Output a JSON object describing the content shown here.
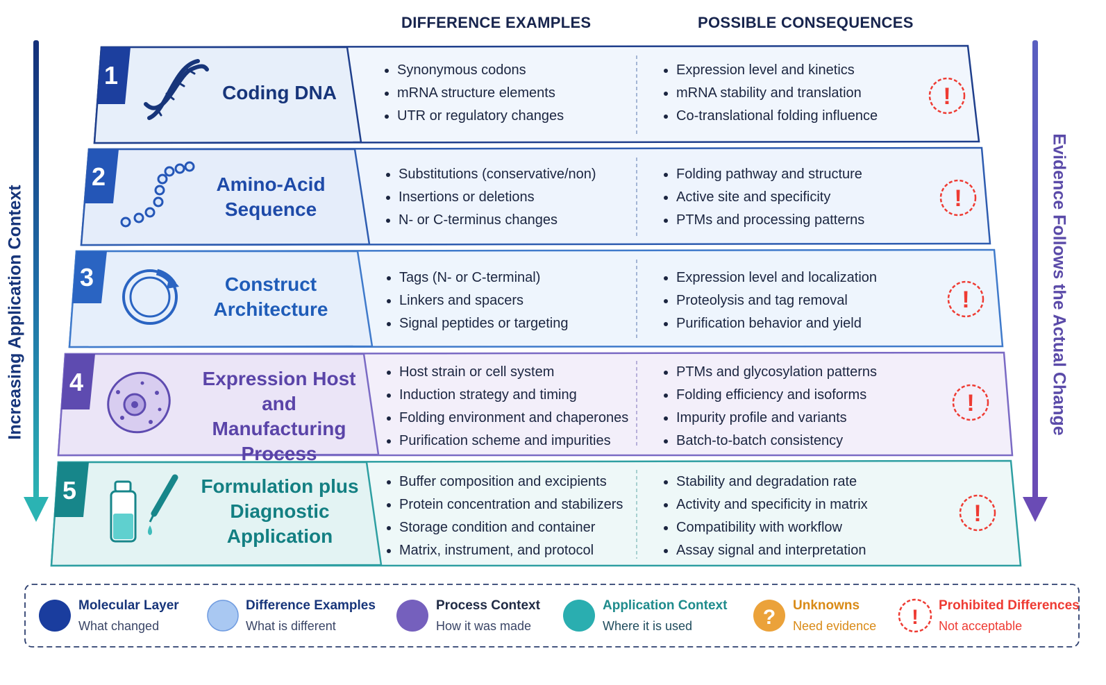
{
  "headers": {
    "difference": "DIFFERENCE EXAMPLES",
    "consequence": "POSSIBLE CONSEQUENCES"
  },
  "side_labels": {
    "left": "Increasing Application Context",
    "right": "Evidence Follows the Actual Change"
  },
  "layers": [
    {
      "number": "1",
      "title_lines": [
        "Coding DNA"
      ],
      "icon": "dna-helix-icon",
      "differences": [
        "Synonymous codons",
        "mRNA structure elements",
        "UTR or regulatory changes"
      ],
      "consequences": [
        "Expression level and kinetics",
        "mRNA stability and translation",
        "Co-translational folding influence"
      ]
    },
    {
      "number": "2",
      "title_lines": [
        "Amino-Acid",
        "Sequence"
      ],
      "icon": "amino-acid-chain-icon",
      "differences": [
        "Substitutions (conservative/non)",
        "Insertions or deletions",
        "N- or C-terminus changes"
      ],
      "consequences": [
        "Folding pathway and structure",
        "Active site and specificity",
        "PTMs and processing patterns"
      ]
    },
    {
      "number": "3",
      "title_lines": [
        "Construct",
        "Architecture"
      ],
      "icon": "plasmid-icon",
      "differences": [
        "Tags (N- or C-terminal)",
        "Linkers and spacers",
        "Signal peptides or targeting"
      ],
      "consequences": [
        "Expression level and localization",
        "Proteolysis and tag removal",
        "Purification behavior and yield"
      ]
    },
    {
      "number": "4",
      "title_lines": [
        "Expression Host",
        "and Manufacturing",
        "Process"
      ],
      "icon": "cell-icon",
      "differences": [
        "Host strain or cell system",
        "Induction strategy and timing",
        "Folding environment and chaperones",
        "Purification scheme and impurities"
      ],
      "consequences": [
        "PTMs and glycosylation patterns",
        "Folding efficiency and isoforms",
        "Impurity profile and variants",
        "Batch-to-batch consistency"
      ]
    },
    {
      "number": "5",
      "title_lines": [
        "Formulation plus",
        "Diagnostic",
        "Application"
      ],
      "icon": "vial-dropper-icon",
      "differences": [
        "Buffer composition and excipients",
        "Protein concentration and stabilizers",
        "Storage condition and container",
        "Matrix, instrument, and protocol"
      ],
      "consequences": [
        "Stability and degradation rate",
        "Activity and specificity in matrix",
        "Compatibility with workflow",
        "Assay signal and interpretation"
      ]
    }
  ],
  "legend": [
    {
      "title": "Molecular Layer",
      "sub": "What changed",
      "color": "#1a3d9e",
      "icon": "molecular-dot-icon"
    },
    {
      "title": "Difference Examples",
      "sub": "What is different",
      "color": "#a9c8f2",
      "icon": "difference-dot-icon"
    },
    {
      "title": "Process Context",
      "sub": "How it was made",
      "color": "#7560bd",
      "icon": "process-dot-icon"
    },
    {
      "title": "Application Context",
      "sub": "Where it is used",
      "color": "#2aaeb0",
      "icon": "application-dot-icon"
    },
    {
      "title": "Unknowns",
      "sub": "Need evidence",
      "color": "#eba23a",
      "icon": "question-icon"
    },
    {
      "title": "Prohibited Differences",
      "sub": "Not acceptable",
      "color": "#ee3b33",
      "icon": "prohibited-icon"
    }
  ],
  "colors": {
    "navy": "#17357a",
    "purple": "#6a56b8",
    "teal": "#1e8b8c",
    "warning": "#ee3b33",
    "unknown": "#eba23a"
  }
}
